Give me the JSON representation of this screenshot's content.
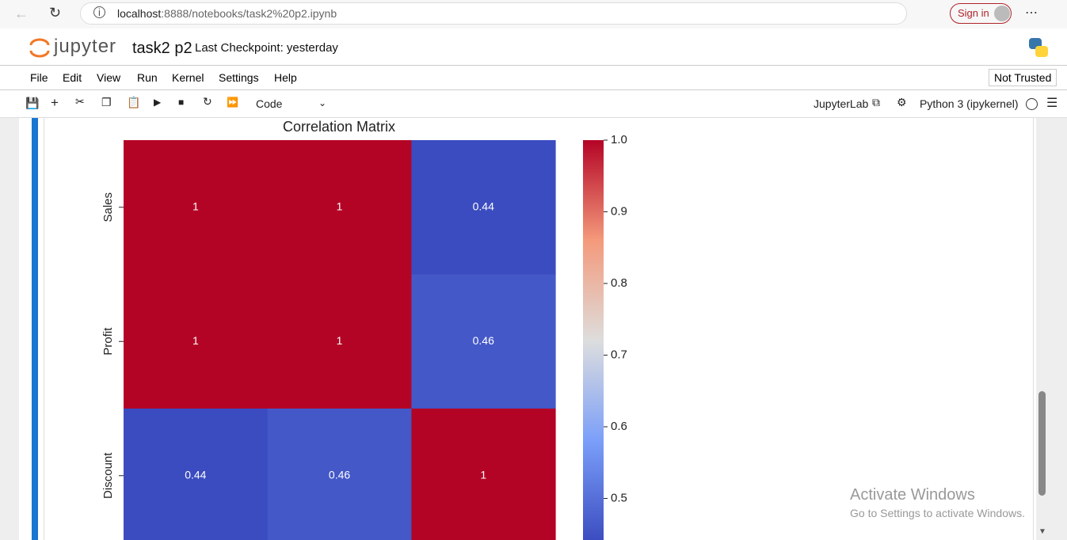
{
  "browser": {
    "url_host": "localhost",
    "url_path": ":8888/notebooks/task2%20p2.ipynb",
    "sign_in": "Sign in"
  },
  "jupyter": {
    "logo": "jupyter",
    "notebook_name": "task2 p2",
    "checkpoint": "Last Checkpoint: yesterday",
    "menu": [
      "File",
      "Edit",
      "View",
      "Run",
      "Kernel",
      "Settings",
      "Help"
    ],
    "trust": "Not Trusted",
    "cell_type": "Code",
    "lab_link": "JupyterLab",
    "kernel": "Python 3 (ipykernel)"
  },
  "watermark": {
    "title": "Activate Windows",
    "subtitle": "Go to Settings to activate Windows."
  },
  "chart_data": {
    "type": "heatmap",
    "title": "Correlation Matrix",
    "colormap": "coolwarm",
    "rows": [
      "Sales",
      "Profit",
      "Discount"
    ],
    "values": [
      [
        1,
        1,
        0.44
      ],
      [
        1,
        1,
        0.46
      ],
      [
        0.44,
        0.46,
        1
      ]
    ],
    "zlim": [
      0.44,
      1
    ],
    "zticks": [
      0.5,
      0.6,
      0.7,
      0.8,
      0.9,
      {
        "value": 1,
        "label": "1.0"
      }
    ]
  }
}
